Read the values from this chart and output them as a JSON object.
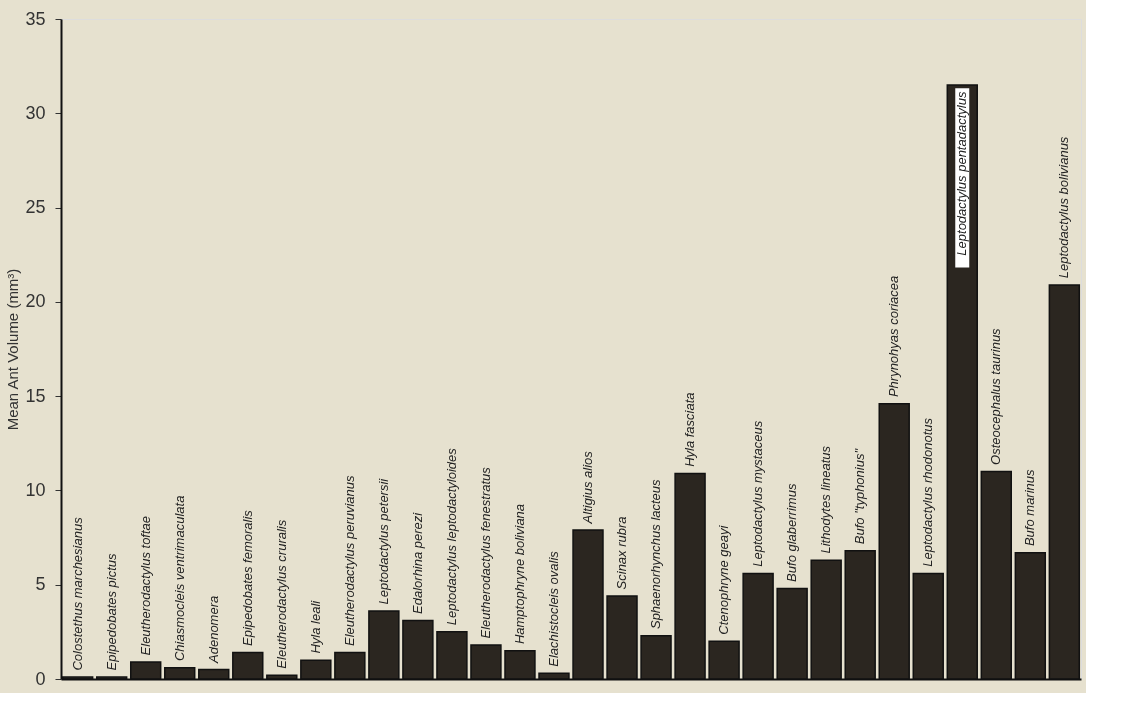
{
  "chart_data": {
    "type": "bar",
    "ylabel": "Mean Ant Volume (mm³)",
    "categories": [
      "Colostethus marchesianus",
      "Epipedobates pictus",
      "Eleutherodactylus toftae",
      "Chiasmocleis ventrimaculata",
      "Adenomera",
      "Epipedobates femoralis",
      "Eleutherodactylus cruralis",
      "Hyla leali",
      "Eleutherodactylus peruvianus",
      "Leptodactylus petersii",
      "Edalorhina perezi",
      "Leptodactylus leptodactyloides",
      "Eleutherodactylus fenestratus",
      "Hamptophryne boliviana",
      "Elachistocleis ovalis",
      "Altigius alios",
      "Scinax rubra",
      "Sphaenorhynchus lacteus",
      "Hyla fasciata",
      "Ctenophryne geayi",
      "Leptodactylus mystaceus",
      "Bufo glaberrimus",
      "Lithodytes lineatus",
      "Bufo \"typhonius\"",
      "Phrynohyas coriacea",
      "Leptodactylus rhodonotus",
      "Leptodactylus pentadactylus",
      "Osteocephalus taurinus",
      "Bufo marinus",
      "Leptodactylus bolivianus"
    ],
    "values": [
      0.1,
      0.1,
      0.9,
      0.6,
      0.5,
      1.4,
      0.2,
      1.0,
      1.4,
      3.6,
      3.1,
      2.5,
      1.8,
      1.5,
      0.3,
      7.9,
      4.4,
      2.3,
      10.9,
      2.0,
      5.6,
      4.8,
      6.3,
      6.8,
      14.6,
      5.6,
      31.5,
      11.0,
      6.7,
      20.9
    ],
    "color": "#2b2620",
    "ylim": [
      0,
      35
    ],
    "yticks": [
      0,
      5,
      10,
      15,
      20,
      25,
      30,
      35
    ],
    "grid": false,
    "tick_labels": "y"
  }
}
